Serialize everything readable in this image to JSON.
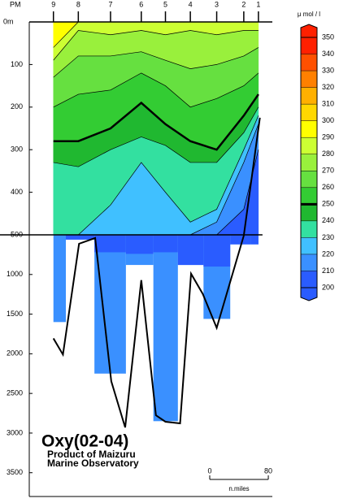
{
  "chart_data": {
    "type": "section",
    "title": "Oxy(02-04)",
    "subtitle": [
      "Product of Maizuru",
      "Marine Observatory"
    ],
    "x_prefix_label": "PM",
    "stations": [
      "9",
      "8",
      "7",
      "6",
      "5",
      "4",
      "3",
      "2",
      "1"
    ],
    "x": [
      0,
      34,
      78,
      120,
      153,
      187,
      223,
      260,
      280
    ],
    "xlim": [
      -33,
      299
    ],
    "ylim": [
      0,
      3800
    ],
    "panel_break": 500,
    "yticks": [
      {
        "value": 0,
        "label": "0m"
      },
      100,
      200,
      300,
      400,
      500,
      1000,
      1500,
      2000,
      2500,
      3000,
      3500
    ],
    "colorbar": {
      "unit": "μ mol / l",
      "levels": [
        200,
        210,
        220,
        230,
        240,
        250,
        260,
        270,
        280,
        290,
        300,
        310,
        320,
        330,
        340,
        350
      ],
      "colors": [
        "#2a5cff",
        "#3a90ff",
        "#40c0ff",
        "#33e0a0",
        "#20b830",
        "#33cc33",
        "#66e040",
        "#99f03c",
        "#ccff33",
        "#ffff00",
        "#ffd800",
        "#ffb000",
        "#ff8000",
        "#ff5000",
        "#ff2000"
      ],
      "bold_level": 250
    },
    "contours": [
      {
        "level": 290,
        "depths": [
          60,
          0,
          0,
          0,
          0,
          0,
          0,
          0,
          0
        ]
      },
      {
        "level": 280,
        "depths": [
          90,
          20,
          30,
          20,
          30,
          20,
          30,
          20,
          20
        ]
      },
      {
        "level": 270,
        "depths": [
          130,
          80,
          80,
          70,
          90,
          110,
          100,
          80,
          60
        ]
      },
      {
        "level": 260,
        "depths": [
          200,
          170,
          160,
          120,
          150,
          200,
          180,
          150,
          120
        ]
      },
      {
        "level": 250,
        "depths": [
          280,
          280,
          250,
          190,
          240,
          280,
          300,
          220,
          170
        ]
      },
      {
        "level": 240,
        "depths": [
          330,
          340,
          300,
          270,
          290,
          330,
          330,
          260,
          200
        ]
      },
      {
        "level": 230,
        "depths": [
          500,
          500,
          430,
          330,
          400,
          470,
          440,
          300,
          220
        ]
      },
      {
        "level": 220,
        "depths": [
          500,
          500,
          500,
          500,
          500,
          500,
          470,
          330,
          240
        ]
      },
      {
        "level": 210,
        "depths": [
          500,
          500,
          500,
          500,
          500,
          500,
          500,
          440,
          300
        ]
      }
    ],
    "lower_panel": {
      "contour_level": 210,
      "contour_depths": [
        500,
        560,
        720,
        740,
        720,
        880,
        900,
        620,
        620
      ],
      "cast_depths": [
        1600,
        560,
        2250,
        880,
        2850,
        880,
        1560,
        620,
        620
      ]
    },
    "bottom_profile": {
      "x": [
        0,
        13,
        35,
        57,
        79,
        98,
        120,
        140,
        153,
        173,
        188,
        204,
        223,
        260,
        282
      ],
      "depth": [
        1806,
        2010,
        612,
        540,
        2347,
        2929,
        1071,
        2776,
        2857,
        2878,
        990,
        1245,
        1673,
        510,
        225
      ]
    },
    "scale_bar": {
      "ticks": [
        0,
        80
      ],
      "unit": "n.miles"
    }
  }
}
